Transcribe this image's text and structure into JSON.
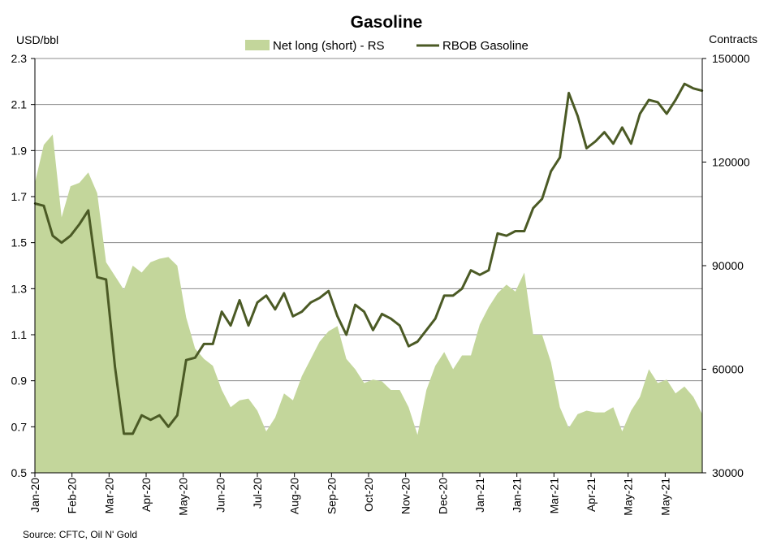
{
  "chart_data": {
    "type": "line",
    "title": "Gasoline",
    "left_unit": "USD/bbl",
    "right_unit": "Contracts",
    "source": "Source: CFTC, Oil N' Gold",
    "x_tick_labels": [
      "Jan-20",
      "Feb-20",
      "Mar-20",
      "Apr-20",
      "May-20",
      "Jun-20",
      "Jul-20",
      "Aug-20",
      "Sep-20",
      "Oct-20",
      "Nov-20",
      "Dec-20",
      "Jan-21",
      "Jan-21",
      "Mar-21",
      "Apr-21",
      "May-21",
      "May-21"
    ],
    "y_left": {
      "min": 0.5,
      "max": 2.3,
      "ticks": [
        "0.5",
        "0.7",
        "0.9",
        "1.1",
        "1.3",
        "1.5",
        "1.7",
        "1.9",
        "2.1",
        "2.3"
      ]
    },
    "y_right": {
      "min": 30000,
      "max": 150000,
      "ticks": [
        "30000",
        "60000",
        "90000",
        "120000",
        "150000"
      ]
    },
    "grid": "horizontal",
    "legend_position": "top",
    "series": [
      {
        "name": "Net long (short) - RS",
        "type": "area",
        "axis": "right",
        "color": "#c3d69b",
        "values": [
          114000,
          125000,
          128000,
          104000,
          113000,
          114000,
          117000,
          111000,
          91000,
          87000,
          83000,
          90000,
          88000,
          91000,
          92000,
          92500,
          90000,
          75000,
          66000,
          63000,
          61000,
          54000,
          49000,
          51000,
          51500,
          48000,
          42000,
          46000,
          53000,
          51000,
          58000,
          63000,
          68000,
          71000,
          72500,
          63000,
          60000,
          56000,
          57000,
          56500,
          54000,
          54000,
          49000,
          41000,
          54000,
          61000,
          65000,
          60000,
          64000,
          64000,
          73000,
          78000,
          82000,
          84500,
          82500,
          88000,
          70000,
          70000,
          62000,
          49000,
          43000,
          47000,
          48000,
          47500,
          47500,
          49000,
          42000,
          48000,
          52000,
          60000,
          56000,
          57000,
          53000,
          55000,
          52000,
          47000
        ]
      },
      {
        "name": "RBOB Gasoline",
        "type": "line",
        "axis": "left",
        "color": "#4b5a25",
        "values": [
          1.67,
          1.66,
          1.53,
          1.5,
          1.53,
          1.58,
          1.64,
          1.35,
          1.34,
          0.96,
          0.67,
          0.67,
          0.75,
          0.73,
          0.75,
          0.7,
          0.75,
          0.99,
          1.0,
          1.06,
          1.06,
          1.2,
          1.14,
          1.25,
          1.14,
          1.24,
          1.27,
          1.21,
          1.28,
          1.18,
          1.2,
          1.24,
          1.26,
          1.29,
          1.18,
          1.1,
          1.23,
          1.2,
          1.12,
          1.19,
          1.17,
          1.14,
          1.05,
          1.07,
          1.12,
          1.17,
          1.27,
          1.27,
          1.3,
          1.38,
          1.36,
          1.38,
          1.54,
          1.53,
          1.55,
          1.55,
          1.65,
          1.69,
          1.81,
          1.87,
          2.15,
          2.05,
          1.91,
          1.94,
          1.98,
          1.93,
          2.0,
          1.93,
          2.06,
          2.12,
          2.11,
          2.06,
          2.12,
          2.19,
          2.17,
          2.16
        ]
      }
    ]
  }
}
